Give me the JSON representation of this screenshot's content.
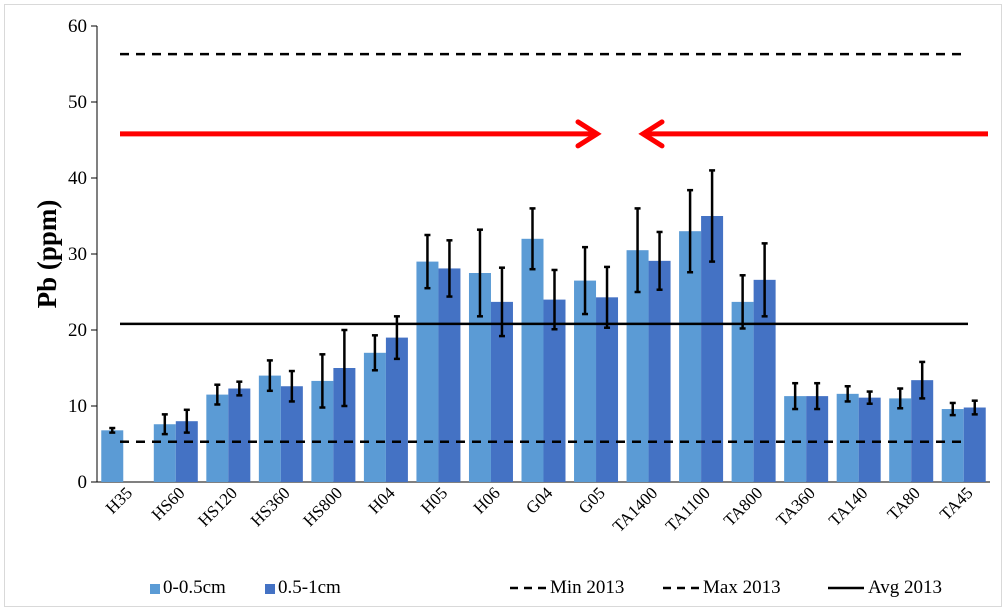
{
  "chart_data": {
    "type": "bar",
    "ylabel": "Pb (ppm)",
    "xlabel": "",
    "ylim": [
      0,
      60
    ],
    "yticks": [
      0,
      10,
      20,
      30,
      40,
      50,
      60
    ],
    "grid": false,
    "legend_position": "bottom",
    "categories": [
      "H35",
      "HS60",
      "HS120",
      "HS360",
      "HS800",
      "H04",
      "H05",
      "H06",
      "G04",
      "G05",
      "TA1400",
      "TA1100",
      "TA800",
      "TA360",
      "TA140",
      "TA80",
      "TA45"
    ],
    "series": [
      {
        "name": "0-0.5cm",
        "color": "#5b9bd5",
        "values": [
          6.8,
          7.6,
          11.5,
          14.0,
          13.3,
          17.0,
          29.0,
          27.5,
          32.0,
          26.5,
          30.5,
          33.0,
          23.7,
          11.3,
          11.6,
          11.0,
          9.6
        ],
        "errors": [
          0.3,
          1.3,
          1.3,
          2.0,
          3.5,
          2.3,
          3.5,
          5.7,
          4.0,
          4.4,
          5.5,
          5.4,
          3.5,
          1.7,
          1.0,
          1.3,
          0.8
        ]
      },
      {
        "name": "0.5-1cm",
        "color": "#4472c4",
        "values": [
          null,
          8.0,
          12.3,
          12.6,
          15.0,
          19.0,
          28.1,
          23.7,
          24.0,
          24.3,
          29.1,
          35.0,
          26.6,
          11.3,
          11.1,
          13.4,
          9.8
        ],
        "errors": [
          null,
          1.5,
          0.9,
          2.0,
          5.0,
          2.8,
          3.7,
          4.5,
          3.9,
          4.0,
          3.8,
          6.0,
          4.8,
          1.7,
          0.8,
          2.4,
          0.9
        ]
      }
    ],
    "reference_lines": [
      {
        "name": "Min 2013",
        "value": 5.3,
        "style": "dashed",
        "color": "#000000"
      },
      {
        "name": "Max 2013",
        "value": 56.3,
        "style": "dashed",
        "color": "#000000"
      },
      {
        "name": "Avg 2013",
        "value": 20.8,
        "style": "solid",
        "color": "#000000"
      }
    ],
    "annotations": [
      {
        "type": "arrow",
        "direction": "right",
        "color": "#ff0000",
        "y_value": 45.8
      },
      {
        "type": "arrow",
        "direction": "left",
        "color": "#ff0000",
        "y_value": 45.8
      }
    ]
  }
}
